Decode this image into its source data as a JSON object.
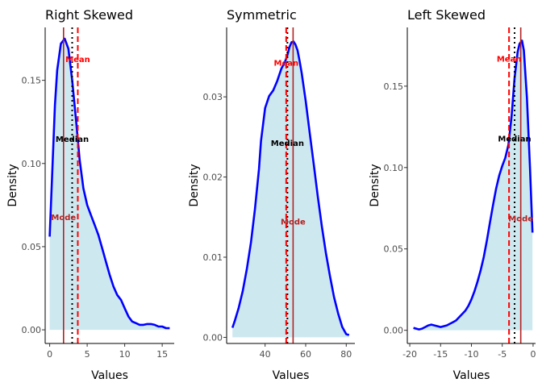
{
  "chart_data": [
    {
      "type": "area",
      "title": "Right Skewed",
      "xlabel": "Values",
      "ylabel": "Density",
      "xlim": [
        -0.6,
        16.6
      ],
      "ylim": [
        -0.0082,
        0.1818
      ],
      "xticks": [
        0,
        5,
        10,
        15
      ],
      "xtick_labels": [
        "0",
        "5",
        "10",
        "15"
      ],
      "yticks": [
        0.0,
        0.05,
        0.1,
        0.15
      ],
      "ytick_labels": [
        "0.00",
        "0.05",
        "0.10",
        "0.15"
      ],
      "series": [
        {
          "x": [
            0.0,
            0.3,
            0.7,
            1.0,
            1.5,
            2.0,
            2.5,
            3.0,
            3.5,
            4.0,
            4.5,
            5.0,
            5.5,
            6.0,
            6.5,
            7.0,
            7.5,
            8.0,
            8.5,
            9.0,
            9.5,
            10.0,
            10.5,
            11.0,
            11.5,
            12.0,
            12.5,
            13.0,
            13.5,
            14.0,
            14.5,
            15.0,
            15.5,
            16.0
          ],
          "y": [
            0.056,
            0.09,
            0.135,
            0.156,
            0.172,
            0.175,
            0.169,
            0.15,
            0.127,
            0.102,
            0.085,
            0.075,
            0.069,
            0.063,
            0.057,
            0.049,
            0.041,
            0.033,
            0.026,
            0.021,
            0.018,
            0.013,
            0.008,
            0.005,
            0.004,
            0.003,
            0.003,
            0.0035,
            0.0035,
            0.003,
            0.002,
            0.002,
            0.001,
            0.001
          ]
        }
      ],
      "mode": 1.85,
      "median": 3.0,
      "mean": 3.75,
      "annotations": [
        {
          "text": "Mean",
          "x": 3.75,
          "y": 0.163,
          "color": "#ff0000"
        },
        {
          "text": "Median",
          "x": 3.0,
          "y": 0.115,
          "color": "#000000"
        },
        {
          "text": "Mode",
          "x": 1.85,
          "y": 0.068,
          "color": "#b22222"
        }
      ]
    },
    {
      "type": "area",
      "title": "Symmetric",
      "xlabel": "Values",
      "ylabel": "Density",
      "xlim": [
        21.05,
        84.25
      ],
      "ylim": [
        -0.00076,
        0.03866
      ],
      "xticks": [
        40,
        60,
        80
      ],
      "xtick_labels": [
        "40",
        "60",
        "80"
      ],
      "yticks": [
        0.0,
        0.01,
        0.02,
        0.03
      ],
      "ytick_labels": [
        "0.00",
        "0.01",
        "0.02",
        "0.03"
      ],
      "series": [
        {
          "x": [
            23.9,
            25,
            27,
            29,
            31,
            33,
            35,
            37,
            38,
            40,
            42,
            44,
            46,
            48,
            50,
            51,
            52,
            53,
            54,
            55,
            56,
            57,
            58,
            60,
            62,
            64,
            66,
            68,
            70,
            72,
            74,
            76,
            78,
            80,
            81.4
          ],
          "y": [
            0.0012,
            0.002,
            0.0037,
            0.0058,
            0.0085,
            0.0118,
            0.016,
            0.021,
            0.0245,
            0.0286,
            0.0301,
            0.0308,
            0.032,
            0.0335,
            0.0345,
            0.0352,
            0.0362,
            0.0368,
            0.0369,
            0.0365,
            0.0358,
            0.0345,
            0.033,
            0.0295,
            0.0255,
            0.0215,
            0.0175,
            0.0138,
            0.0105,
            0.0076,
            0.005,
            0.003,
            0.0013,
            0.0004,
            0.0003
          ]
        }
      ],
      "mode": 53.8,
      "median": 51.0,
      "mean": 50.4,
      "annotations": [
        {
          "text": "Mean",
          "x": 50.4,
          "y": 0.0343,
          "color": "#ff0000"
        },
        {
          "text": "Median",
          "x": 51.0,
          "y": 0.0243,
          "color": "#000000"
        },
        {
          "text": "Mode",
          "x": 53.8,
          "y": 0.0145,
          "color": "#b22222"
        }
      ]
    },
    {
      "type": "area",
      "title": "Left Skewed",
      "xlabel": "Values",
      "ylabel": "Density",
      "xlim": [
        -20.4,
        0.4
      ],
      "ylim": [
        -0.0081,
        0.1861
      ],
      "xticks": [
        -20,
        -15,
        -10,
        -5,
        0
      ],
      "xtick_labels": [
        "-20",
        "-15",
        "-10",
        "-5",
        "0"
      ],
      "yticks": [
        0.0,
        0.05,
        0.1,
        0.15
      ],
      "ytick_labels": [
        "0.00",
        "0.05",
        "0.10",
        "0.15"
      ],
      "series": [
        {
          "x": [
            -19.4,
            -18.5,
            -18.0,
            -17.5,
            -17.0,
            -16.5,
            -16.0,
            -15.5,
            -15.0,
            -14.5,
            -14.0,
            -13.5,
            -13.0,
            -12.5,
            -12.0,
            -11.5,
            -11.0,
            -10.5,
            -10.0,
            -9.5,
            -9.0,
            -8.5,
            -8.0,
            -7.5,
            -7.0,
            -6.5,
            -6.0,
            -5.5,
            -5.0,
            -4.5,
            -4.0,
            -3.5,
            -3.0,
            -2.5,
            -2.2,
            -1.8,
            -1.5,
            -1.0,
            -0.5,
            -0.1
          ],
          "y": [
            0.0015,
            0.0005,
            0.001,
            0.002,
            0.003,
            0.0035,
            0.003,
            0.0025,
            0.002,
            0.0025,
            0.003,
            0.004,
            0.005,
            0.006,
            0.008,
            0.01,
            0.012,
            0.015,
            0.019,
            0.024,
            0.03,
            0.037,
            0.045,
            0.055,
            0.066,
            0.077,
            0.087,
            0.095,
            0.101,
            0.106,
            0.114,
            0.131,
            0.155,
            0.171,
            0.176,
            0.178,
            0.172,
            0.143,
            0.1,
            0.06
          ]
        }
      ],
      "mode": -2.0,
      "median": -3.0,
      "mean": -3.9,
      "annotations": [
        {
          "text": "Mean",
          "x": -3.9,
          "y": 0.167,
          "color": "#ff0000"
        },
        {
          "text": "Median",
          "x": -3.0,
          "y": 0.118,
          "color": "#000000"
        },
        {
          "text": "Mode",
          "x": -2.0,
          "y": 0.069,
          "color": "#b22222"
        }
      ]
    }
  ]
}
